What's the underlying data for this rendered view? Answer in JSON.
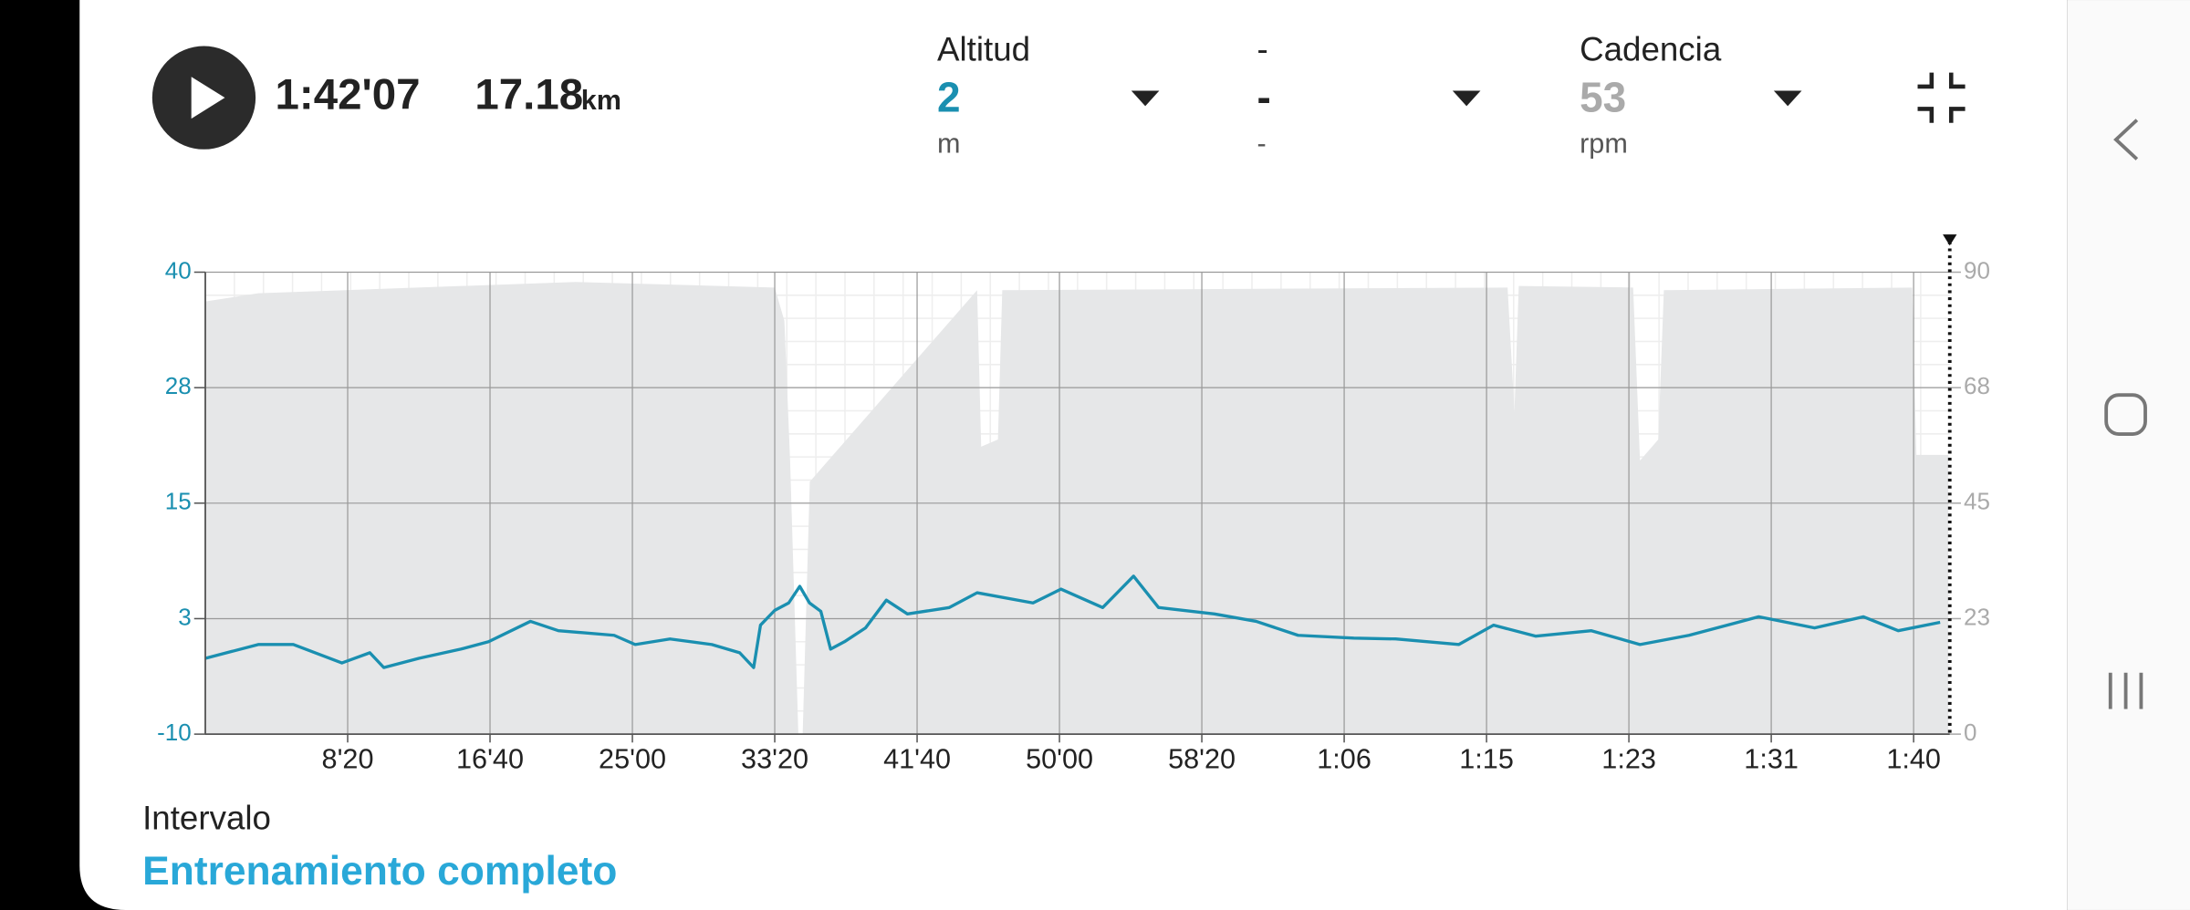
{
  "header": {
    "duration": "1:42'07",
    "distance": "17.18",
    "distance_unit": "km",
    "selectors": [
      {
        "value": "2",
        "unit": "m"
      },
      {
        "label": "-",
        "value": "-",
        "unit": "-"
      },
      {
        "value": "53",
        "unit": "rpm"
      }
    ]
  },
  "footer": {
    "label": "Intervalo",
    "value": "Entrenamiento completo"
  },
  "chart_data": {
    "type": "line",
    "xlim": [
      0,
      6127
    ],
    "xticks": [
      {
        "value": 500,
        "label": "8'20"
      },
      {
        "value": 1000,
        "label": "16'40"
      },
      {
        "value": 1500,
        "label": "25'00"
      },
      {
        "value": 2000,
        "label": "33'20"
      },
      {
        "value": 2500,
        "label": "41'40"
      },
      {
        "value": 3000,
        "label": "50'00"
      },
      {
        "value": 3500,
        "label": "58'20"
      },
      {
        "value": 4000,
        "label": "1:06"
      },
      {
        "value": 4500,
        "label": "1:15"
      },
      {
        "value": 5000,
        "label": "1:23"
      },
      {
        "value": 5500,
        "label": "1:31"
      },
      {
        "value": 6000,
        "label": "1:40"
      }
    ],
    "ylim": [
      -10,
      40
    ],
    "yticks": [
      40,
      {
        "value": 27.5,
        "label": "28"
      },
      15,
      {
        "value": 2.5,
        "label": "3"
      },
      -10
    ],
    "y2lim": [
      0,
      90
    ],
    "y2ticks": [
      90,
      {
        "value": 67.5,
        "label": "68"
      },
      45,
      {
        "value": 22.5,
        "label": "23"
      },
      0
    ],
    "grid": true,
    "series": [
      {
        "name": "Altitud",
        "color": "#1a8fb0",
        "x": [
          0,
          186,
          309,
          480,
          578,
          627,
          750,
          897,
          995,
          1142,
          1240,
          1436,
          1510,
          1632,
          1779,
          1877,
          1926,
          1950,
          2000,
          2049,
          2088,
          2122,
          2162,
          2196,
          2245,
          2319,
          2392,
          2466,
          2613,
          2711,
          2907,
          3005,
          3152,
          3260,
          3348,
          3544,
          3691,
          3838,
          4034,
          4181,
          4402,
          4525,
          4672,
          4868,
          5039,
          5211,
          5456,
          5652,
          5824,
          5946,
          6093
        ],
        "values": [
          -1.8,
          -0.3,
          -0.3,
          -2.3,
          -1.2,
          -2.8,
          -1.8,
          -0.8,
          0,
          2.2,
          1.2,
          0.7,
          -0.3,
          0.3,
          -0.3,
          -1.2,
          -2.8,
          1.8,
          3.4,
          4.2,
          6,
          4.2,
          3.3,
          -0.8,
          0,
          1.5,
          4.5,
          3,
          3.7,
          5.3,
          4.2,
          5.7,
          3.7,
          7.1,
          3.7,
          3,
          2.2,
          0.7,
          0.4,
          0.3,
          -0.3,
          1.8,
          0.6,
          1.2,
          -0.3,
          0.7,
          2.7,
          1.5,
          2.7,
          1.2,
          2.1
        ]
      },
      {
        "name": "Cadencia",
        "color": "#e6e7e8",
        "axis": "y2",
        "fill": true,
        "x": [
          0,
          186,
          900,
          1300,
          2000,
          2034,
          2054,
          2083,
          2098,
          2123,
          2711,
          2725,
          2784,
          2799,
          4574,
          4598,
          4613,
          5015,
          5039,
          5103,
          5123,
          5995,
          6010,
          6122
        ],
        "values": [
          84.3,
          85.9,
          87.3,
          88.1,
          87,
          80.5,
          53.3,
          0,
          0,
          49.2,
          86.5,
          56,
          57.4,
          86.5,
          87,
          62.8,
          87.3,
          87,
          53.3,
          57.4,
          86.5,
          87,
          54.4,
          54.4
        ]
      }
    ]
  }
}
